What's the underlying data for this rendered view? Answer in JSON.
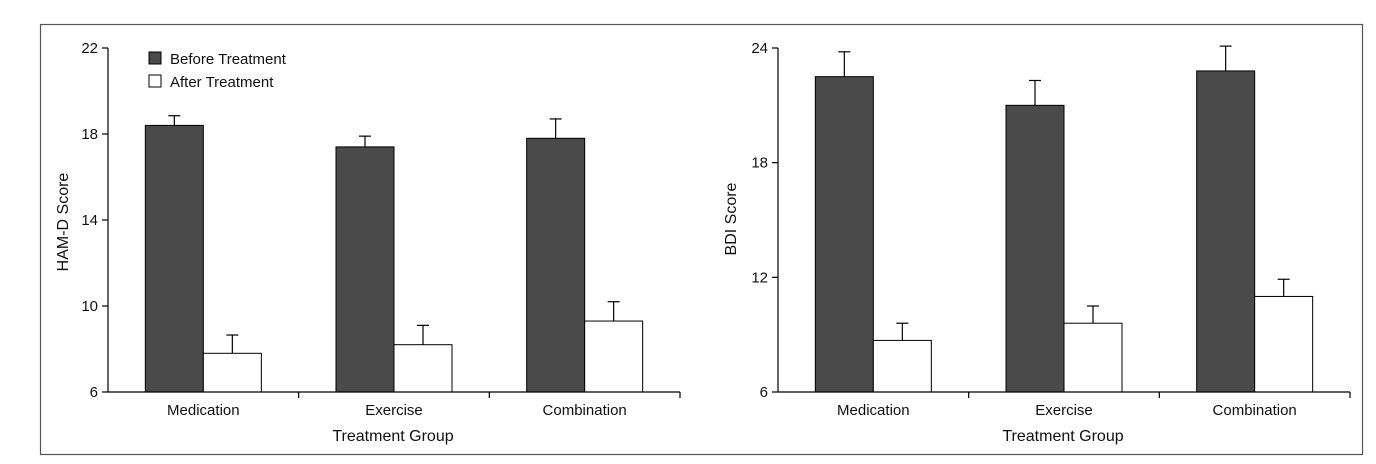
{
  "colors": {
    "before": "#4a4a4a",
    "after": "#ffffff",
    "stroke": "#000000",
    "frame": "#555555"
  },
  "chart_data": [
    {
      "type": "bar",
      "categories": [
        "Medication",
        "Exercise",
        "Combination"
      ],
      "series": [
        {
          "name": "Before Treatment",
          "values": [
            18.4,
            17.4,
            17.8
          ],
          "errors": [
            0.45,
            0.5,
            0.9
          ]
        },
        {
          "name": "After Treatment",
          "values": [
            7.8,
            8.2,
            9.3
          ],
          "errors": [
            0.85,
            0.9,
            0.9
          ]
        }
      ],
      "xlabel": "Treatment Group",
      "ylabel": "HAM-D Score",
      "ylim": [
        6,
        22
      ],
      "yticks": [
        6,
        10,
        14,
        18,
        22
      ],
      "legend": "top-left",
      "grid": false
    },
    {
      "type": "bar",
      "categories": [
        "Medication",
        "Exercise",
        "Combination"
      ],
      "series": [
        {
          "name": "Before Treatment",
          "values": [
            22.5,
            21.0,
            22.8
          ],
          "errors": [
            1.3,
            1.3,
            1.3
          ]
        },
        {
          "name": "After Treatment",
          "values": [
            8.7,
            9.6,
            11.0
          ],
          "errors": [
            0.9,
            0.9,
            0.9
          ]
        }
      ],
      "xlabel": "Treatment Group",
      "ylabel": "BDI Score",
      "ylim": [
        6,
        24
      ],
      "yticks": [
        6,
        12,
        18,
        24
      ],
      "grid": false
    }
  ]
}
